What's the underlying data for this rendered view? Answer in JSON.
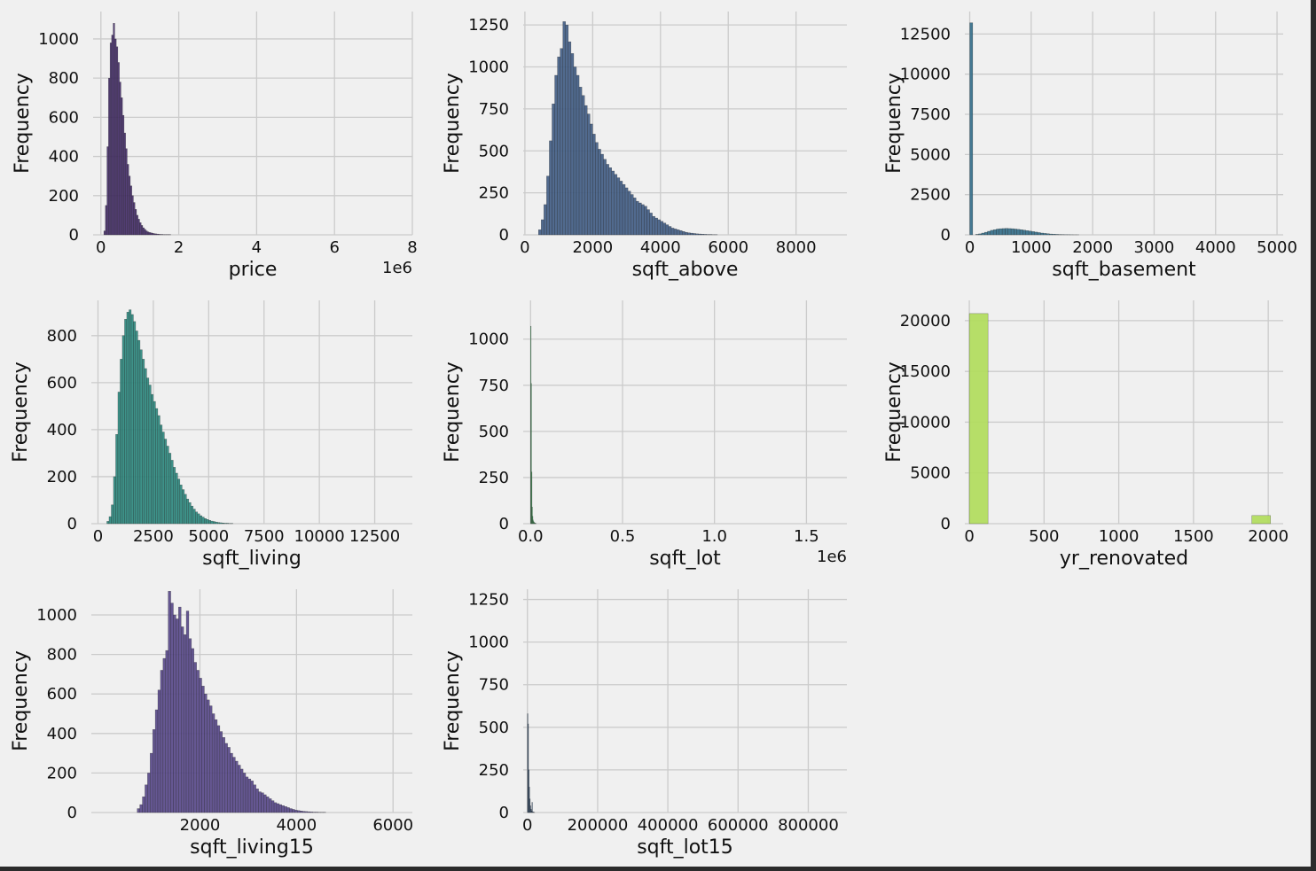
{
  "chart_data": [
    {
      "type": "bar",
      "xlabel": "price",
      "ylabel": "Frequency",
      "offset_text": "1e6",
      "xlim": [
        -0.2,
        8.0
      ],
      "ylim": [
        0,
        1140
      ],
      "xticks": [
        0,
        2,
        4,
        6,
        8
      ],
      "xtick_labels": [
        "0",
        "2",
        "4",
        "6",
        "8"
      ],
      "yticks": [
        0,
        200,
        400,
        600,
        800,
        1000
      ],
      "ytick_labels": [
        "0",
        "200",
        "400",
        "600",
        "800",
        "1000"
      ],
      "color": "#48306d",
      "grid": true,
      "bin_start": 0.075,
      "bin_width": 0.04,
      "values": [
        20,
        150,
        450,
        800,
        980,
        1020,
        1080,
        1000,
        960,
        880,
        780,
        700,
        610,
        520,
        440,
        360,
        300,
        250,
        200,
        165,
        130,
        100,
        80,
        62,
        48,
        36,
        28,
        20,
        15,
        12,
        10,
        8,
        6,
        5,
        4,
        3,
        2,
        2,
        1,
        1,
        1,
        1,
        1
      ]
    },
    {
      "type": "bar",
      "xlabel": "sqft_above",
      "ylabel": "Frequency",
      "xlim": [
        -50,
        9500
      ],
      "ylim": [
        0,
        1330
      ],
      "xticks": [
        0,
        2000,
        4000,
        6000,
        8000
      ],
      "xtick_labels": [
        "0",
        "2000",
        "4000",
        "6000",
        "8000"
      ],
      "yticks": [
        0,
        250,
        500,
        750,
        1000,
        1250
      ],
      "ytick_labels": [
        "0",
        "250",
        "500",
        "750",
        "1000",
        "1250"
      ],
      "color": "#435e86",
      "grid": true,
      "bin_start": 400,
      "bin_width": 80,
      "values": [
        30,
        90,
        180,
        350,
        560,
        780,
        950,
        1060,
        1110,
        1270,
        1250,
        1150,
        1080,
        1000,
        950,
        880,
        830,
        770,
        720,
        660,
        600,
        550,
        510,
        480,
        450,
        420,
        400,
        380,
        360,
        340,
        320,
        300,
        280,
        260,
        240,
        220,
        200,
        190,
        180,
        170,
        150,
        130,
        110,
        100,
        90,
        80,
        70,
        60,
        50,
        40,
        35,
        30,
        25,
        20,
        15,
        12,
        10,
        8,
        6,
        5,
        4,
        3,
        2,
        2,
        1,
        1
      ]
    },
    {
      "type": "bar",
      "xlabel": "sqft_basement",
      "ylabel": "Frequency",
      "xlim": [
        -80,
        5100
      ],
      "ylim": [
        0,
        13900
      ],
      "xticks": [
        0,
        1000,
        2000,
        3000,
        4000,
        5000
      ],
      "xtick_labels": [
        "0",
        "1000",
        "2000",
        "3000",
        "4000",
        "5000"
      ],
      "yticks": [
        0,
        2500,
        5000,
        7500,
        10000,
        12500
      ],
      "ytick_labels": [
        "0",
        "2500",
        "5000",
        "7500",
        "10000",
        "12500"
      ],
      "color": "#356f8a",
      "grid": true,
      "bin_start": 0,
      "bin_width": 48,
      "values": [
        13200,
        0,
        30,
        60,
        110,
        160,
        220,
        280,
        320,
        360,
        380,
        390,
        400,
        390,
        380,
        360,
        340,
        320,
        290,
        260,
        230,
        200,
        170,
        140,
        110,
        90,
        70,
        50,
        40,
        30,
        20,
        15,
        10,
        8,
        5,
        3,
        2
      ]
    },
    {
      "type": "bar",
      "xlabel": "sqft_living",
      "ylabel": "Frequency",
      "xlim": [
        -300,
        14200
      ],
      "ylim": [
        0,
        950
      ],
      "xticks": [
        0,
        2500,
        5000,
        7500,
        10000,
        12500
      ],
      "xtick_labels": [
        "0",
        "2500",
        "5000",
        "7500",
        "10000",
        "12500"
      ],
      "yticks": [
        0,
        200,
        400,
        600,
        800
      ],
      "ytick_labels": [
        "0",
        "200",
        "400",
        "600",
        "800"
      ],
      "color": "#2f8a80",
      "grid": true,
      "bin_start": 400,
      "bin_width": 100,
      "values": [
        10,
        30,
        80,
        200,
        380,
        560,
        700,
        800,
        870,
        900,
        910,
        890,
        860,
        820,
        780,
        740,
        700,
        660,
        620,
        590,
        550,
        520,
        490,
        460,
        420,
        390,
        360,
        330,
        300,
        270,
        240,
        215,
        190,
        165,
        145,
        125,
        105,
        90,
        75,
        62,
        50,
        42,
        34,
        28,
        22,
        18,
        14,
        11,
        9,
        7,
        5,
        4,
        3,
        2,
        2,
        1,
        1
      ]
    },
    {
      "type": "bar",
      "xlabel": "sqft_lot",
      "ylabel": "Frequency",
      "offset_text": "1e6",
      "xlim": [
        -0.04,
        1.72
      ],
      "ylim": [
        0,
        1210
      ],
      "xticks": [
        0,
        0.5,
        1.0,
        1.5
      ],
      "xtick_labels": [
        "0.0",
        "0.5",
        "1.0",
        "1.5"
      ],
      "yticks": [
        0,
        250,
        500,
        750,
        1000
      ],
      "ytick_labels": [
        "0",
        "250",
        "500",
        "750",
        "1000"
      ],
      "color": "#4cbb6a",
      "grid": true,
      "bin_start": 0,
      "bin_width": 0.0025,
      "values": [
        1070,
        760,
        280,
        90,
        40,
        20,
        12,
        8,
        5,
        3,
        2,
        1
      ]
    },
    {
      "type": "bar",
      "xlabel": "yr_renovated",
      "ylabel": "Frequency",
      "xlim": [
        -30,
        2100
      ],
      "ylim": [
        0,
        22000
      ],
      "xticks": [
        0,
        500,
        1000,
        1500,
        2000
      ],
      "xtick_labels": [
        "0",
        "500",
        "1000",
        "1500",
        "2000"
      ],
      "yticks": [
        0,
        5000,
        10000,
        15000,
        20000
      ],
      "ytick_labels": [
        "0",
        "5000",
        "10000",
        "15000",
        "20000"
      ],
      "color": "#b1dc5c",
      "grid": true,
      "bars": [
        {
          "x0": 0,
          "x1": 125,
          "value": 20700
        },
        {
          "x0": 1890,
          "x1": 2015,
          "value": 800
        }
      ]
    },
    {
      "type": "bar",
      "xlabel": "sqft_living15",
      "ylabel": "Frequency",
      "xlim": [
        -250,
        6400
      ],
      "ylim": [
        0,
        1130
      ],
      "xticks": [
        2000,
        4000,
        6000
      ],
      "xtick_labels": [
        "2000",
        "4000",
        "6000"
      ],
      "yticks": [
        0,
        200,
        400,
        600,
        800,
        1000
      ],
      "ytick_labels": [
        "0",
        "200",
        "400",
        "600",
        "800",
        "1000"
      ],
      "color": "#594a8a",
      "grid": true,
      "bin_start": 700,
      "bin_width": 53.5,
      "values": [
        20,
        40,
        80,
        140,
        200,
        300,
        420,
        520,
        620,
        720,
        780,
        820,
        1120,
        1060,
        1000,
        980,
        1040,
        940,
        900,
        1020,
        880,
        830,
        760,
        720,
        680,
        640,
        600,
        570,
        540,
        500,
        470,
        440,
        410,
        380,
        350,
        330,
        300,
        280,
        260,
        240,
        220,
        200,
        180,
        170,
        160,
        140,
        120,
        105,
        100,
        90,
        80,
        70,
        60,
        50,
        45,
        40,
        35,
        30,
        25,
        20,
        16,
        12,
        10,
        8,
        6,
        5,
        4,
        3,
        2,
        2,
        1,
        1,
        1
      ]
    },
    {
      "type": "bar",
      "xlabel": "sqft_lot15",
      "ylabel": "Frequency",
      "xlim": [
        -12000,
        910000
      ],
      "ylim": [
        0,
        1310
      ],
      "xticks": [
        0,
        200000,
        400000,
        600000,
        800000
      ],
      "xtick_labels": [
        "0",
        "200000",
        "400000",
        "600000",
        "800000"
      ],
      "yticks": [
        0,
        250,
        500,
        750,
        1000,
        1250
      ],
      "ytick_labels": [
        "0",
        "250",
        "500",
        "750",
        "1000",
        "1250"
      ],
      "color": "#3b5c85",
      "grid": true,
      "bin_start": 0,
      "bin_width": 1600,
      "values": [
        580,
        520,
        250,
        150,
        80,
        40,
        20,
        10,
        60,
        5,
        3,
        2,
        1
      ]
    }
  ]
}
